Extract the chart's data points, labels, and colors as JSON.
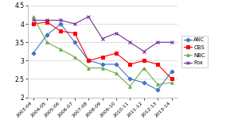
{
  "seasons": [
    "2003-04",
    "2004-05",
    "2005-06",
    "2006-07",
    "2007-08",
    "2008-09",
    "2009-10",
    "2010-11",
    "2011-12",
    "2012-13",
    "2013-14"
  ],
  "ABC": [
    3.2,
    3.7,
    4.0,
    3.5,
    3.0,
    2.9,
    2.9,
    2.5,
    2.4,
    2.2,
    2.7
  ],
  "CBS": [
    4.0,
    4.05,
    3.8,
    3.75,
    3.0,
    3.1,
    3.2,
    2.9,
    3.0,
    2.9,
    2.5
  ],
  "NBC": [
    4.2,
    3.5,
    3.3,
    3.1,
    2.8,
    2.8,
    2.65,
    2.3,
    2.8,
    2.35,
    2.4
  ],
  "Fox": [
    4.1,
    4.1,
    4.1,
    4.0,
    4.2,
    3.6,
    3.75,
    3.5,
    3.25,
    3.5,
    3.5
  ],
  "colors": {
    "ABC": "#4472c4",
    "CBS": "#ff0000",
    "NBC": "#70ad47",
    "Fox": "#7030a0"
  },
  "markers": {
    "ABC": "D",
    "CBS": "s",
    "NBC": "^",
    "Fox": "x"
  },
  "ylim": [
    2.0,
    4.5
  ],
  "yticks": [
    2.0,
    2.5,
    3.0,
    3.5,
    4.0,
    4.5
  ],
  "ytick_labels": [
    "2",
    "2.5",
    "3",
    "3.5",
    "4",
    "4.5"
  ]
}
